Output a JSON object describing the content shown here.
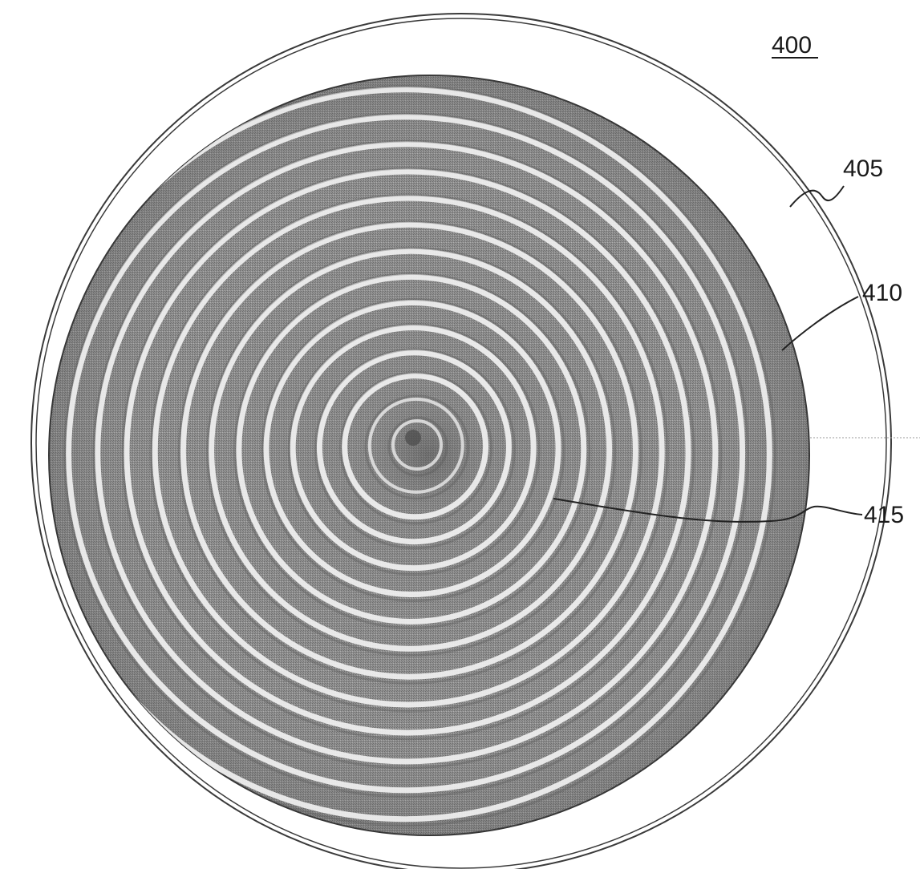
{
  "figure": {
    "label": "400"
  },
  "references": [
    {
      "id": "405",
      "label": "405",
      "part": "outer-ring"
    },
    {
      "id": "410",
      "label": "410",
      "part": "textured-surface"
    },
    {
      "id": "415",
      "label": "415",
      "part": "concentric-rings"
    }
  ],
  "colors": {
    "outline": "#333333",
    "surface_base": "#8f8f8f",
    "surface_dark": "#6a6a6a",
    "ring_light": "#f2f2f2",
    "background": "#ffffff"
  }
}
